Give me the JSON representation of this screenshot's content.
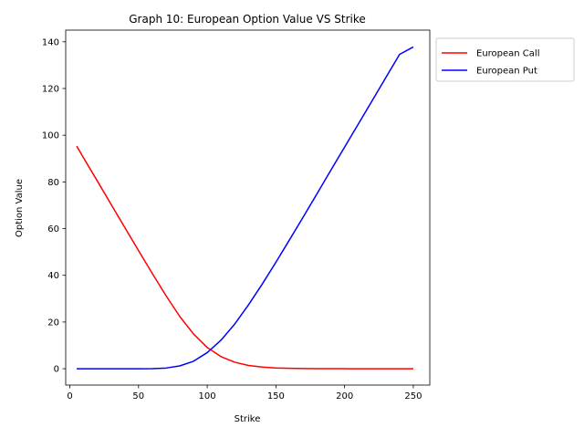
{
  "chart_data": {
    "type": "line",
    "title": "Graph 10: European Option Value VS Strike",
    "xlabel": "Strike",
    "ylabel": "Option Value",
    "xlim": [
      -3,
      262
    ],
    "ylim": [
      -7,
      145
    ],
    "xticks": [
      0,
      50,
      100,
      150,
      200,
      250
    ],
    "yticks": [
      0,
      20,
      40,
      60,
      80,
      100,
      120,
      140
    ],
    "grid": false,
    "legend_position": "outside-upper-right",
    "series": [
      {
        "name": "European Call",
        "color": "#ff0000",
        "x": [
          5,
          10,
          20,
          30,
          40,
          50,
          60,
          70,
          80,
          90,
          100,
          110,
          120,
          130,
          140,
          150,
          160,
          170,
          180,
          200,
          220,
          250
        ],
        "y": [
          95.3,
          90.3,
          80.4,
          70.4,
          60.5,
          50.6,
          40.8,
          31.3,
          22.4,
          14.9,
          9.1,
          5.2,
          2.8,
          1.4,
          0.7,
          0.35,
          0.17,
          0.08,
          0.04,
          0.01,
          0.0,
          0.0
        ]
      },
      {
        "name": "European Put",
        "color": "#0000ff",
        "x": [
          5,
          20,
          40,
          50,
          60,
          70,
          80,
          90,
          100,
          110,
          120,
          130,
          140,
          150,
          160,
          170,
          180,
          190,
          200,
          210,
          220,
          230,
          240,
          250
        ],
        "y": [
          0.0,
          0.0,
          0.0,
          0.0,
          0.05,
          0.3,
          1.2,
          3.2,
          6.9,
          12.2,
          19.1,
          27.3,
          36.2,
          45.6,
          55.3,
          65.1,
          75.0,
          85.0,
          94.9,
          104.8,
          114.7,
          124.7,
          134.6,
          137.8
        ]
      }
    ]
  }
}
